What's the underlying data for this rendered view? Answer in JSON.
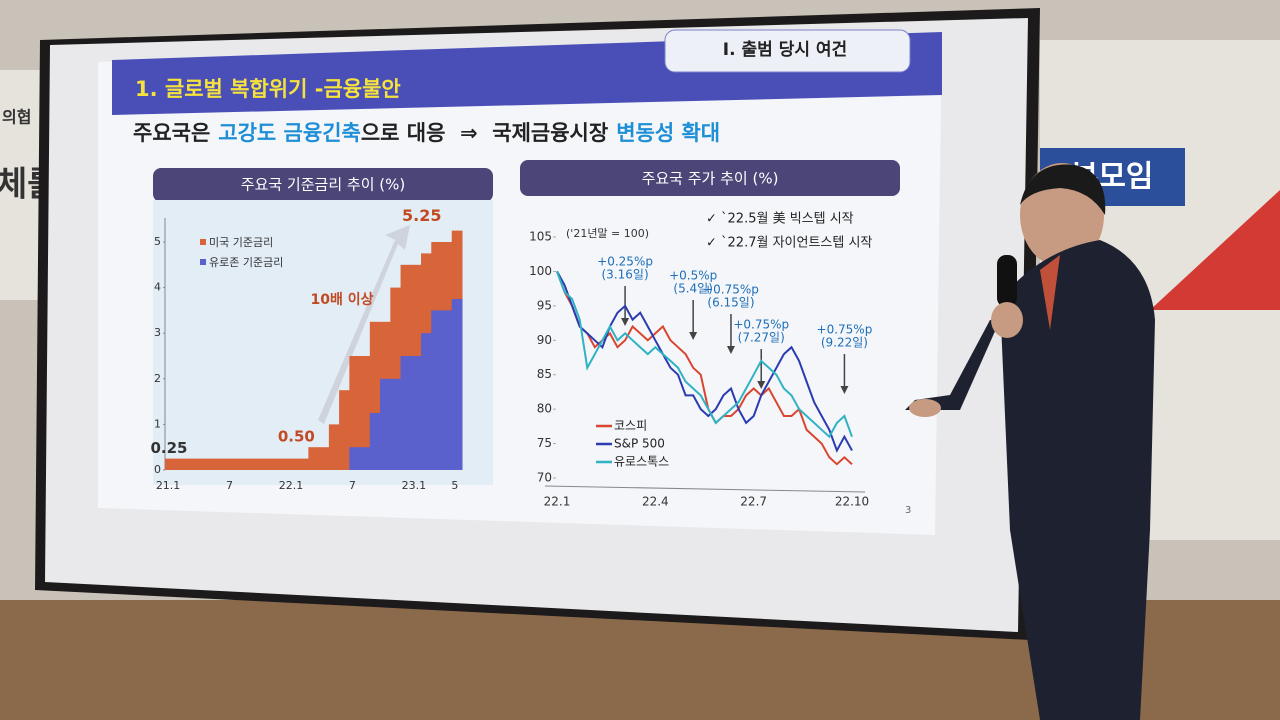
{
  "slide": {
    "section": "I. 출범 당시 여건",
    "title": "1. 글로벌 복합위기 -금융불안",
    "headline": [
      "주요국은",
      "고강도 금융긴축",
      "으로 대응  ⇒  국제금융시장",
      "변동성 확대"
    ],
    "page_number": "3"
  },
  "background_signs": [
    "의협",
    "체를",
    "부모임"
  ],
  "chart_data": [
    {
      "type": "step-area",
      "title": "주요국 기준금리 추이 (%)",
      "categories": [
        "21.1",
        null,
        null,
        null,
        null,
        null,
        "7",
        null,
        null,
        null,
        null,
        null,
        "22.1",
        null,
        null,
        null,
        null,
        null,
        "7",
        null,
        null,
        null,
        null,
        null,
        "23.1",
        null,
        null,
        null,
        "5"
      ],
      "series": [
        {
          "name": "미국 기준금리",
          "color": "#d8643a",
          "values": [
            0.25,
            0.25,
            0.25,
            0.25,
            0.25,
            0.25,
            0.25,
            0.25,
            0.25,
            0.25,
            0.25,
            0.25,
            0.25,
            0.25,
            0.5,
            0.5,
            1.0,
            1.75,
            2.5,
            2.5,
            3.25,
            3.25,
            4.0,
            4.5,
            4.5,
            4.75,
            5.0,
            5.0,
            5.25
          ],
          "value_labels": [
            "0.25",
            null,
            null,
            null,
            null,
            null,
            null,
            null,
            null,
            null,
            null,
            null,
            null,
            null,
            "0.50",
            null,
            null,
            null,
            null,
            null,
            null,
            null,
            null,
            null,
            null,
            null,
            null,
            null,
            "5.25"
          ]
        },
        {
          "name": "유로존 기준금리",
          "color": "#5a60cc",
          "values": [
            0,
            0,
            0,
            0,
            0,
            0,
            0,
            0,
            0,
            0,
            0,
            0,
            0,
            0,
            0,
            0,
            0,
            0,
            0.5,
            0.5,
            1.25,
            2.0,
            2.0,
            2.5,
            2.5,
            3.0,
            3.5,
            3.5,
            3.75
          ]
        }
      ],
      "ylim": [
        0,
        5.4
      ],
      "yticks": [
        0,
        1,
        2,
        3,
        4,
        5
      ],
      "annotations": [
        "10배 이상"
      ]
    },
    {
      "type": "line",
      "title": "주요국 주가 추이 (%)",
      "subtitle": "('21년말 = 100)",
      "notes": [
        "✓ `22.5월 美 빅스텝 시작",
        "✓ `22.7월 자이언트스텝 시작"
      ],
      "categories": [
        "22.1",
        null,
        null,
        null,
        null,
        null,
        null,
        null,
        null,
        null,
        null,
        null,
        null,
        "22.4",
        null,
        null,
        null,
        null,
        null,
        null,
        null,
        null,
        null,
        null,
        null,
        null,
        "22.7",
        null,
        null,
        null,
        null,
        null,
        null,
        null,
        null,
        null,
        null,
        null,
        null,
        "22.10"
      ],
      "series": [
        {
          "name": "코스피",
          "color": "#d9452f",
          "values": [
            100,
            97,
            95,
            92,
            91,
            89,
            90,
            91,
            89,
            90,
            92,
            91,
            90,
            91,
            92,
            90,
            89,
            88,
            86,
            85,
            80,
            78,
            79,
            79,
            80,
            82,
            83,
            82,
            83,
            81,
            79,
            79,
            80,
            77,
            76,
            75,
            73,
            72,
            73,
            72
          ]
        },
        {
          "name": "S&P 500",
          "color": "#2b3bb0",
          "values": [
            100,
            98,
            95,
            92,
            91,
            90,
            89,
            92,
            94,
            95,
            93,
            94,
            92,
            90,
            88,
            86,
            85,
            82,
            82,
            80,
            79,
            80,
            82,
            83,
            80,
            78,
            79,
            82,
            84,
            86,
            88,
            89,
            87,
            84,
            81,
            79,
            77,
            74,
            76,
            74
          ]
        },
        {
          "name": "유로스톡스",
          "color": "#2fb3c4",
          "values": [
            100,
            97,
            96,
            93,
            86,
            88,
            90,
            92,
            90,
            91,
            90,
            89,
            88,
            89,
            88,
            87,
            86,
            84,
            83,
            82,
            80,
            78,
            79,
            80,
            81,
            83,
            85,
            87,
            86,
            85,
            83,
            82,
            80,
            79,
            78,
            77,
            76,
            78,
            79,
            76
          ]
        }
      ],
      "ylim": [
        70,
        106
      ],
      "yticks": [
        70,
        75,
        80,
        85,
        90,
        95,
        100,
        105
      ],
      "annotations": [
        {
          "text": "+0.25%p",
          "date": "(3.16일)"
        },
        {
          "text": "+0.5%p",
          "date": "(5.4일)"
        },
        {
          "text": "+0.75%p",
          "date": "(6.15일)"
        },
        {
          "text": "+0.75%p",
          "date": "(7.27일)"
        },
        {
          "text": "+0.75%p",
          "date": "(9.22일)"
        }
      ]
    }
  ]
}
